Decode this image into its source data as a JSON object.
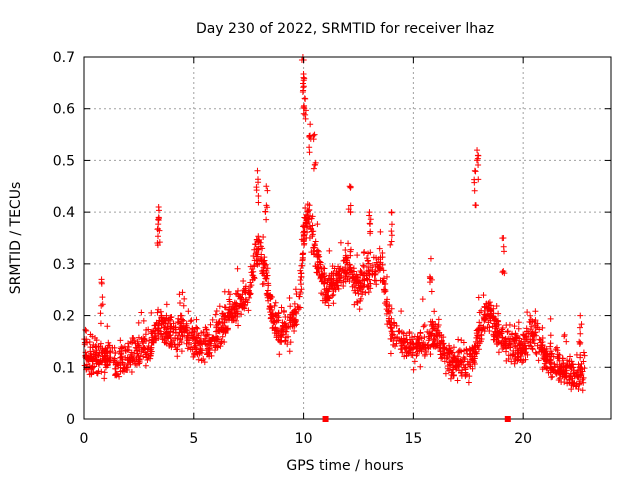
{
  "chart_data": {
    "type": "scatter",
    "title": "Day 230 of 2022, SRMTID for receiver lhaz",
    "xlabel": "GPS time / hours",
    "ylabel": "SRMTID / TECUs",
    "xlim": [
      0,
      24
    ],
    "ylim": [
      0,
      0.7
    ],
    "xticks": [
      "0",
      "5",
      "10",
      "15",
      "20"
    ],
    "yticks": [
      "0",
      "0.1",
      "0.2",
      "0.3",
      "0.4",
      "0.5",
      "0.6",
      "0.7"
    ],
    "grid": true,
    "marker": "plus",
    "color": "#ff0000",
    "gap_markers_x": [
      11.0,
      19.3
    ],
    "series": [
      {
        "name": "SRMTID",
        "trend_x": [
          0,
          0.3,
          0.6,
          1.0,
          1.5,
          2.0,
          2.5,
          3.0,
          3.3,
          3.5,
          4.0,
          4.5,
          5.0,
          5.5,
          6.0,
          6.5,
          7.0,
          7.5,
          7.8,
          8.0,
          8.3,
          8.6,
          9.0,
          9.5,
          9.8,
          10.0,
          10.2,
          10.5,
          11.0,
          11.5,
          12.0,
          12.5,
          13.0,
          13.5,
          14.0,
          14.5,
          15.0,
          15.5,
          16.0,
          16.5,
          17.0,
          17.5,
          17.8,
          18.0,
          18.5,
          19.0,
          19.5,
          20.0,
          20.5,
          21.0,
          21.5,
          22.0,
          22.5,
          22.8
        ],
        "trend_y": [
          0.14,
          0.11,
          0.12,
          0.12,
          0.11,
          0.12,
          0.13,
          0.14,
          0.17,
          0.19,
          0.16,
          0.17,
          0.15,
          0.14,
          0.16,
          0.19,
          0.22,
          0.24,
          0.3,
          0.33,
          0.28,
          0.19,
          0.16,
          0.19,
          0.22,
          0.34,
          0.4,
          0.33,
          0.24,
          0.27,
          0.3,
          0.25,
          0.28,
          0.3,
          0.17,
          0.15,
          0.14,
          0.15,
          0.16,
          0.12,
          0.11,
          0.1,
          0.13,
          0.18,
          0.2,
          0.15,
          0.14,
          0.14,
          0.16,
          0.12,
          0.1,
          0.09,
          0.08,
          0.1
        ],
        "spread": 0.035,
        "n_points": 2200,
        "peaks": [
          {
            "x": 0.8,
            "y": 0.27
          },
          {
            "x": 3.4,
            "y": 0.41
          },
          {
            "x": 3.4,
            "y": 0.39
          },
          {
            "x": 7.9,
            "y": 0.48
          },
          {
            "x": 8.3,
            "y": 0.45
          },
          {
            "x": 9.97,
            "y": 0.7
          },
          {
            "x": 10.0,
            "y": 0.66
          },
          {
            "x": 10.05,
            "y": 0.62
          },
          {
            "x": 10.3,
            "y": 0.57
          },
          {
            "x": 10.5,
            "y": 0.55
          },
          {
            "x": 12.1,
            "y": 0.45
          },
          {
            "x": 13.0,
            "y": 0.4
          },
          {
            "x": 14.0,
            "y": 0.4
          },
          {
            "x": 15.8,
            "y": 0.31
          },
          {
            "x": 17.9,
            "y": 0.52
          },
          {
            "x": 17.8,
            "y": 0.48
          },
          {
            "x": 19.1,
            "y": 0.35
          },
          {
            "x": 22.6,
            "y": 0.2
          }
        ]
      }
    ]
  }
}
